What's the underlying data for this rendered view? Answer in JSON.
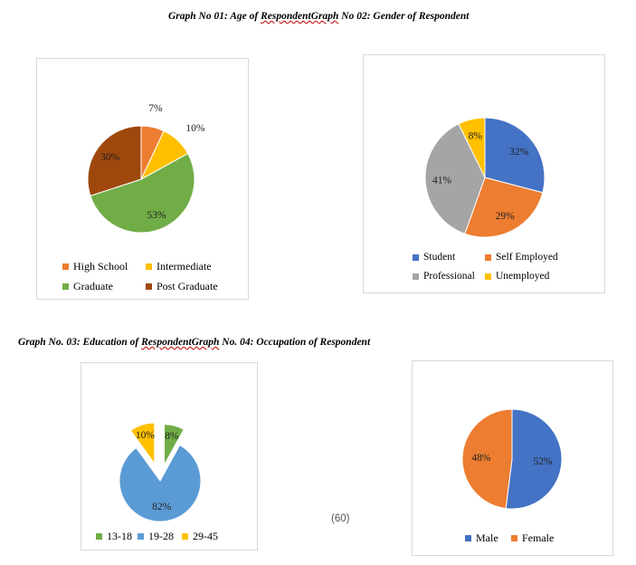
{
  "captions": {
    "top": {
      "part1": "Graph No 01: Age of ",
      "squiggle": "RespondentGraph",
      "part2": " No 02: Gender of Respondent"
    },
    "bottom": {
      "part1": "Graph No. 03: Education of ",
      "squiggle": "RespondentGraph",
      "part2": " No. 04: Occupation of Respondent"
    }
  },
  "page_number": "(60)",
  "chart_data": [
    {
      "type": "pie",
      "title": "",
      "slices": [
        {
          "label": "High School",
          "value": 7,
          "display": "7%",
          "color": "#ed7d31"
        },
        {
          "label": "Intermediate",
          "value": 10,
          "display": "10%",
          "color": "#ffc000"
        },
        {
          "label": "Graduate",
          "value": 53,
          "display": "53%",
          "color": "#70ad47"
        },
        {
          "label": "Post Graduate",
          "value": 30,
          "display": "30%",
          "color": "#9e480e"
        }
      ],
      "legend_position": "bottom",
      "exploded": false
    },
    {
      "type": "pie",
      "title": "",
      "slices": [
        {
          "label": "Student",
          "value": 32,
          "display": "32%",
          "color": "#4472c4"
        },
        {
          "label": "Self Employed",
          "value": 29,
          "display": "29%",
          "color": "#ed7d31"
        },
        {
          "label": "Professional",
          "value": 41,
          "display": "41%",
          "color": "#a5a5a5"
        },
        {
          "label": "Unemployed",
          "value": 8,
          "display": "8%",
          "color": "#ffc000"
        }
      ],
      "legend_position": "bottom",
      "exploded": false
    },
    {
      "type": "pie",
      "title": "",
      "slices": [
        {
          "label": "13-18",
          "value": 8,
          "display": "8%",
          "color": "#70ad47"
        },
        {
          "label": "19-28",
          "value": 82,
          "display": "82%",
          "color": "#5b9bd5"
        },
        {
          "label": "29-45",
          "value": 10,
          "display": "10%",
          "color": "#ffc000"
        }
      ],
      "legend_position": "bottom",
      "exploded": true
    },
    {
      "type": "pie",
      "title": "",
      "slices": [
        {
          "label": "Male",
          "value": 52,
          "display": "52%",
          "color": "#4472c4"
        },
        {
          "label": "Female",
          "value": 48,
          "display": "48%",
          "color": "#ed7d31"
        }
      ],
      "legend_position": "bottom",
      "exploded": false
    }
  ]
}
